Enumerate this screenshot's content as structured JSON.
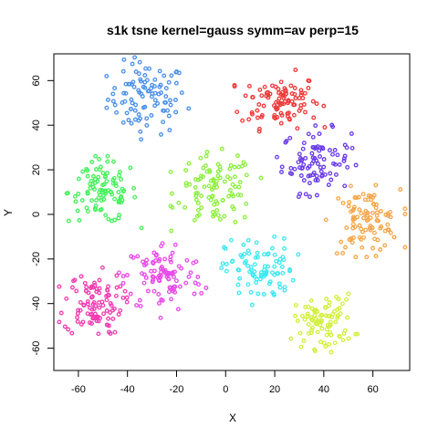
{
  "chart_data": {
    "type": "scatter",
    "title": "s1k tsne kernel=gauss symm=av perp=15",
    "xlabel": "X",
    "ylabel": "Y",
    "xlim": [
      -70,
      75
    ],
    "ylim": [
      -70,
      72
    ],
    "xticks": [
      -60,
      -40,
      -20,
      0,
      20,
      40,
      60
    ],
    "yticks": [
      -60,
      -40,
      -20,
      0,
      20,
      40,
      60
    ],
    "grid": false,
    "legend": "none",
    "marker": "open-circle",
    "clusters": [
      {
        "color": "#4a8fe8",
        "center": [
          -32,
          52
        ],
        "spread": [
          8,
          8
        ],
        "count": 100
      },
      {
        "color": "#ee3a3a",
        "center": [
          22,
          51
        ],
        "spread": [
          8,
          6
        ],
        "count": 100
      },
      {
        "color": "#6a3be8",
        "center": [
          37,
          24
        ],
        "spread": [
          7,
          7
        ],
        "count": 90
      },
      {
        "color": "#46f05c",
        "center": [
          -50,
          10
        ],
        "spread": [
          7,
          7
        ],
        "count": 100
      },
      {
        "color": "#8cf03c",
        "center": [
          -4,
          11
        ],
        "spread": [
          8,
          8
        ],
        "count": 100
      },
      {
        "color": "#f5a64a",
        "center": [
          57,
          -3
        ],
        "spread": [
          7,
          7
        ],
        "count": 100
      },
      {
        "color": "#e84ae8",
        "center": [
          -25,
          -28
        ],
        "spread": [
          8,
          8
        ],
        "count": 100
      },
      {
        "color": "#f03cb0",
        "center": [
          -54,
          -40
        ],
        "spread": [
          6,
          7
        ],
        "count": 100
      },
      {
        "color": "#3ee8f0",
        "center": [
          14,
          -25
        ],
        "spread": [
          7,
          7
        ],
        "count": 90
      },
      {
        "color": "#d2f03c",
        "center": [
          40,
          -48
        ],
        "spread": [
          6,
          6
        ],
        "count": 90
      }
    ]
  }
}
